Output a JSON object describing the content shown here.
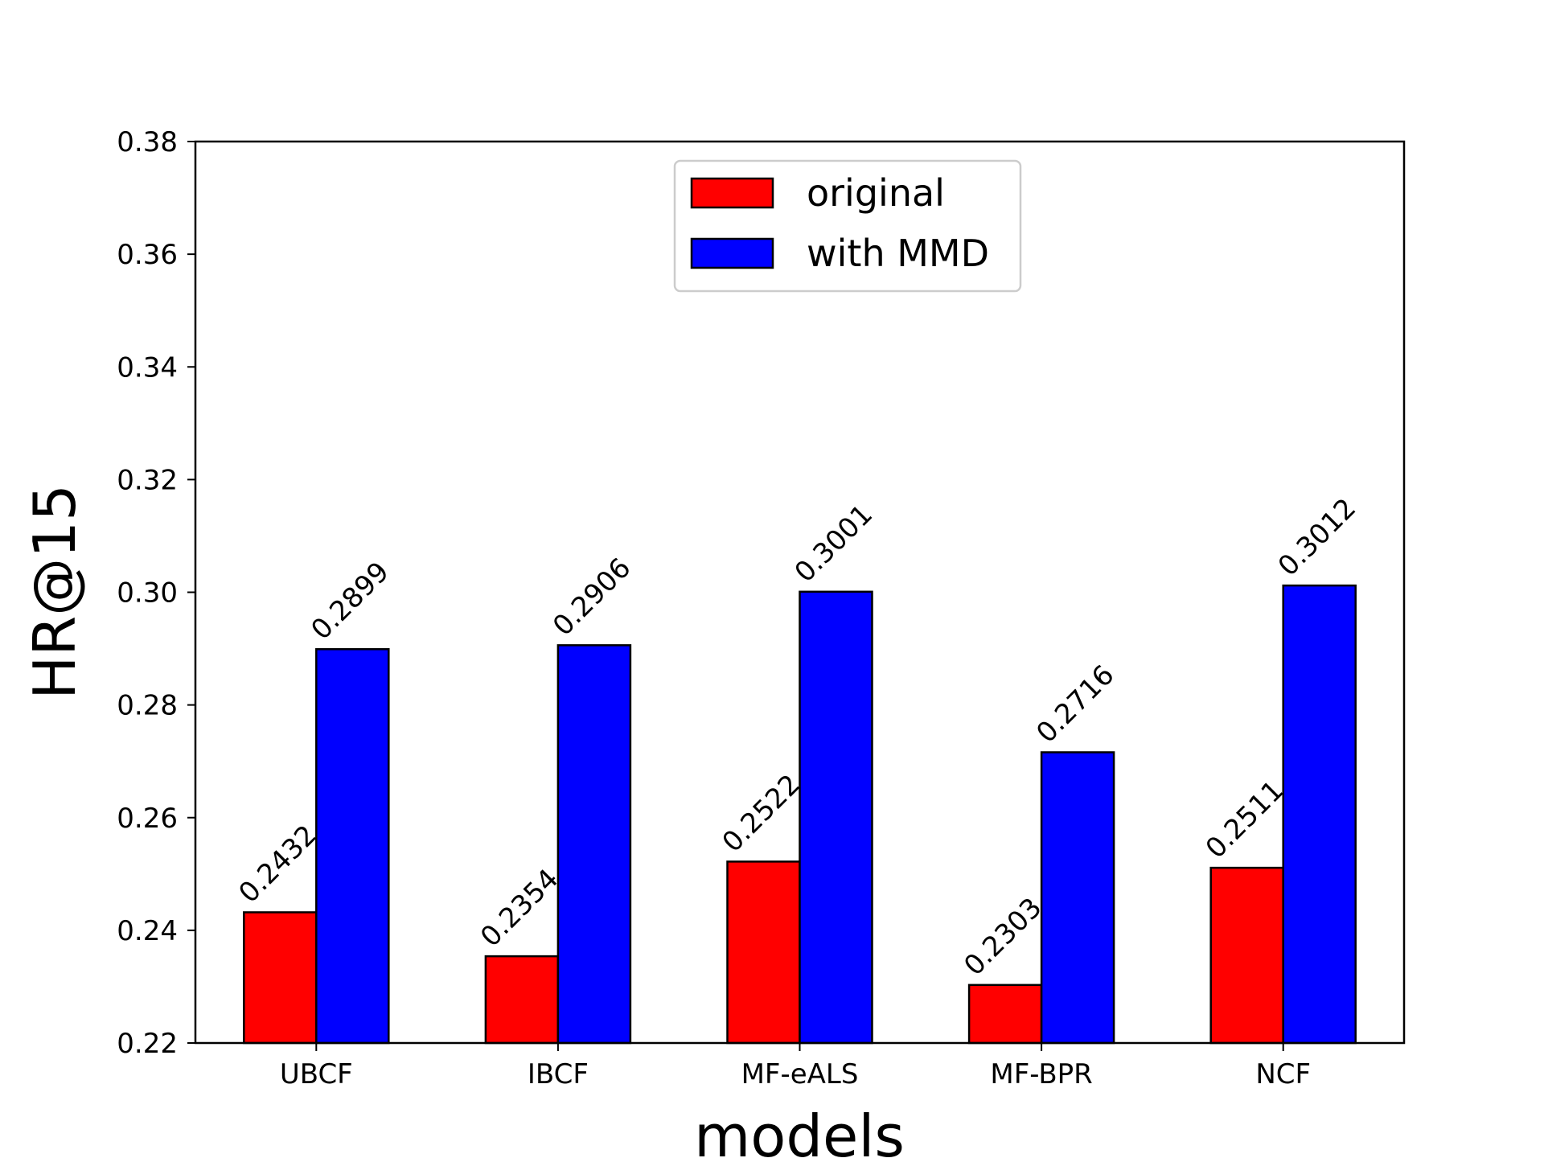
{
  "chart_data": {
    "type": "bar",
    "title": "",
    "xlabel": "models",
    "ylabel": "HR@15",
    "categories": [
      "UBCF",
      "IBCF",
      "MF-eALS",
      "MF-BPR",
      "NCF"
    ],
    "series": [
      {
        "name": "original",
        "color": "#ff0000",
        "values": [
          0.2432,
          0.2354,
          0.2522,
          0.2303,
          0.2511
        ],
        "labels": [
          "0.2432",
          "0.2354",
          "0.2522",
          "0.2303",
          "0.2511"
        ]
      },
      {
        "name": "with MMD",
        "color": "#0000ff",
        "values": [
          0.2899,
          0.2906,
          0.3001,
          0.2716,
          0.3012
        ],
        "labels": [
          "0.2899",
          "0.2906",
          "0.3001",
          "0.2716",
          "0.3012"
        ]
      }
    ],
    "ylim": [
      0.22,
      0.38
    ],
    "yticks": [
      0.22,
      0.24,
      0.26,
      0.28,
      0.3,
      0.32,
      0.34,
      0.36,
      0.38
    ],
    "ytick_labels": [
      "0.22",
      "0.24",
      "0.26",
      "0.28",
      "0.30",
      "0.32",
      "0.34",
      "0.36",
      "0.38"
    ],
    "grid": false,
    "legend_position": "upper center"
  }
}
